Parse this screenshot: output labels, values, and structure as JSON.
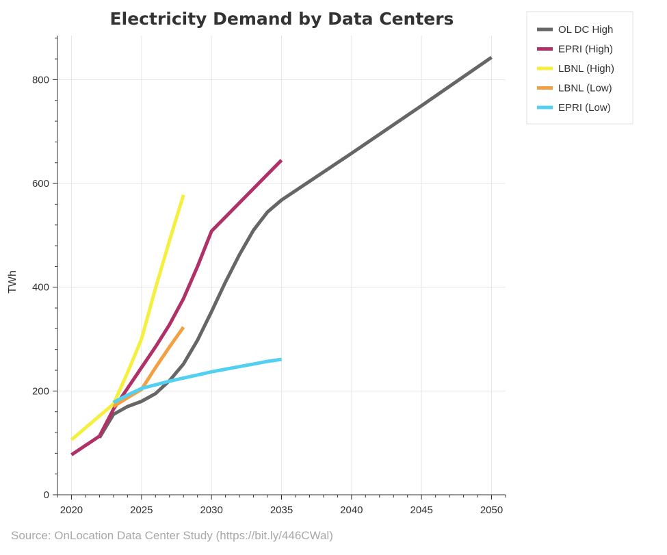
{
  "chart_data": {
    "type": "line",
    "title": "Electricity Demand by Data Centers",
    "xlabel": "",
    "ylabel": "TWh",
    "xlim": [
      2019,
      2051
    ],
    "ylim": [
      0,
      885
    ],
    "xticks": [
      2020,
      2025,
      2030,
      2035,
      2040,
      2045,
      2050
    ],
    "yticks": [
      0,
      200,
      400,
      600,
      800
    ],
    "grid": true,
    "legend_position": "outside-top-right",
    "series": [
      {
        "name": "OL DC High",
        "color": "#666666",
        "x": [
          2022,
          2023,
          2024,
          2025,
          2026,
          2027,
          2028,
          2029,
          2030,
          2031,
          2032,
          2033,
          2034,
          2035,
          2040,
          2045,
          2050
        ],
        "y": [
          110,
          155,
          170,
          180,
          195,
          220,
          252,
          298,
          353,
          410,
          463,
          510,
          545,
          568,
          658,
          750,
          843
        ]
      },
      {
        "name": "EPRI (High)",
        "color": "#b03068",
        "x": [
          2020,
          2022,
          2023,
          2024,
          2025,
          2026,
          2027,
          2028,
          2029,
          2030,
          2035
        ],
        "y": [
          77,
          113,
          165,
          205,
          245,
          285,
          328,
          378,
          440,
          508,
          645
        ]
      },
      {
        "name": "LBNL (High)",
        "color": "#f5ef40",
        "x": [
          2020,
          2023,
          2024,
          2025,
          2026,
          2027,
          2028
        ],
        "y": [
          106,
          175,
          235,
          300,
          398,
          490,
          578
        ]
      },
      {
        "name": "LBNL (Low)",
        "color": "#f3a045",
        "x": [
          2023,
          2024,
          2025,
          2026,
          2027,
          2028
        ],
        "y": [
          170,
          187,
          203,
          245,
          285,
          323
        ]
      },
      {
        "name": "EPRI (Low)",
        "color": "#52d0f2",
        "x": [
          2023,
          2024,
          2025,
          2026,
          2027,
          2028,
          2029,
          2030,
          2031,
          2032,
          2033,
          2034,
          2035
        ],
        "y": [
          178,
          192,
          205,
          212,
          219,
          225,
          231,
          237,
          242,
          247,
          252,
          257,
          261
        ]
      }
    ]
  },
  "source_text": "Source: OnLocation Data Center Study (https://bit.ly/446CWal)"
}
